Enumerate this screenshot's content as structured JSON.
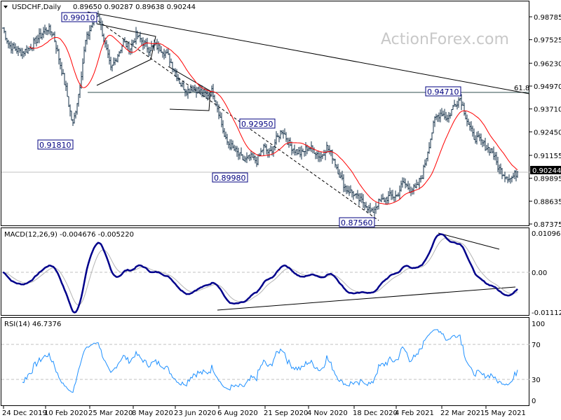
{
  "header": {
    "symbol": "USDCHF,Daily",
    "ohlc": "0.89650 0.90287 0.89638 0.90244"
  },
  "watermark": "ActionForex.com",
  "colors": {
    "bars": "#16324a",
    "ma": "#ff0000",
    "macd": "#00008b",
    "signal": "#b4b4b4",
    "rsi": "#1e90ff",
    "current_price_bg": "#000000"
  },
  "chart_data": [
    {
      "type": "ohlc",
      "title": "USDCHF,Daily",
      "y_ticks": [
        "0.98785",
        "0.97525",
        "0.96230",
        "0.94970",
        "0.93710",
        "0.92450",
        "0.91155",
        "0.89895",
        "0.88635",
        "0.87375"
      ],
      "ylim": [
        0.8718,
        0.9935
      ],
      "x_ticks": [
        "24 Dec 2019",
        "10 Feb 2020",
        "25 Mar 2020",
        "8 May 2020",
        "23 Jun 2020",
        "6 Aug 2020",
        "21 Sep 2020",
        "4 Nov 2020",
        "18 Dec 2020",
        "4 Feb 2021",
        "22 Mar 2021",
        "5 May 2021"
      ],
      "closes_sampled": [
        0.9817,
        0.972,
        0.9701,
        0.9682,
        0.9701,
        0.974,
        0.9778,
        0.9817,
        0.9778,
        0.9624,
        0.947,
        0.9277,
        0.947,
        0.974,
        0.9836,
        0.9894,
        0.974,
        0.9586,
        0.9663,
        0.974,
        0.9701,
        0.9778,
        0.974,
        0.9701,
        0.972,
        0.9701,
        0.9663,
        0.9586,
        0.9508,
        0.947,
        0.9489,
        0.947,
        0.9451,
        0.947,
        0.9354,
        0.92,
        0.9162,
        0.9123,
        0.9084,
        0.9104,
        0.9084,
        0.9162,
        0.9123,
        0.92,
        0.9258,
        0.9181,
        0.9142,
        0.9123,
        0.9162,
        0.9142,
        0.9104,
        0.9162,
        0.9104,
        0.9007,
        0.893,
        0.8911,
        0.8872,
        0.8853,
        0.8795,
        0.8853,
        0.8872,
        0.8892,
        0.8892,
        0.8969,
        0.893,
        0.893,
        0.9007,
        0.9162,
        0.9316,
        0.9354,
        0.9316,
        0.9393,
        0.9432,
        0.9316,
        0.9219,
        0.92,
        0.9162,
        0.9142,
        0.9046,
        0.9007,
        0.8988,
        0.9024
      ],
      "current_price": "0.90244",
      "annotations": [
        "0.99010",
        "0.91810",
        "0.89980",
        "0.92950",
        "0.87560",
        "0.94710"
      ],
      "fib_label": "61.8",
      "moving_average": "red line"
    },
    {
      "type": "line",
      "title": "MACD(12,26,9) -0.004676 -0.005220",
      "y_ticks": [
        "0.010967",
        "0.00",
        "-0.011127"
      ],
      "ylim": [
        -0.011127,
        0.010967
      ],
      "series": [
        "macd",
        "signal"
      ]
    },
    {
      "type": "line",
      "title": "RSI(14) 46.7376",
      "y_ticks": [
        "100",
        "70",
        "30",
        "0"
      ],
      "ylim": [
        0,
        100
      ]
    }
  ]
}
